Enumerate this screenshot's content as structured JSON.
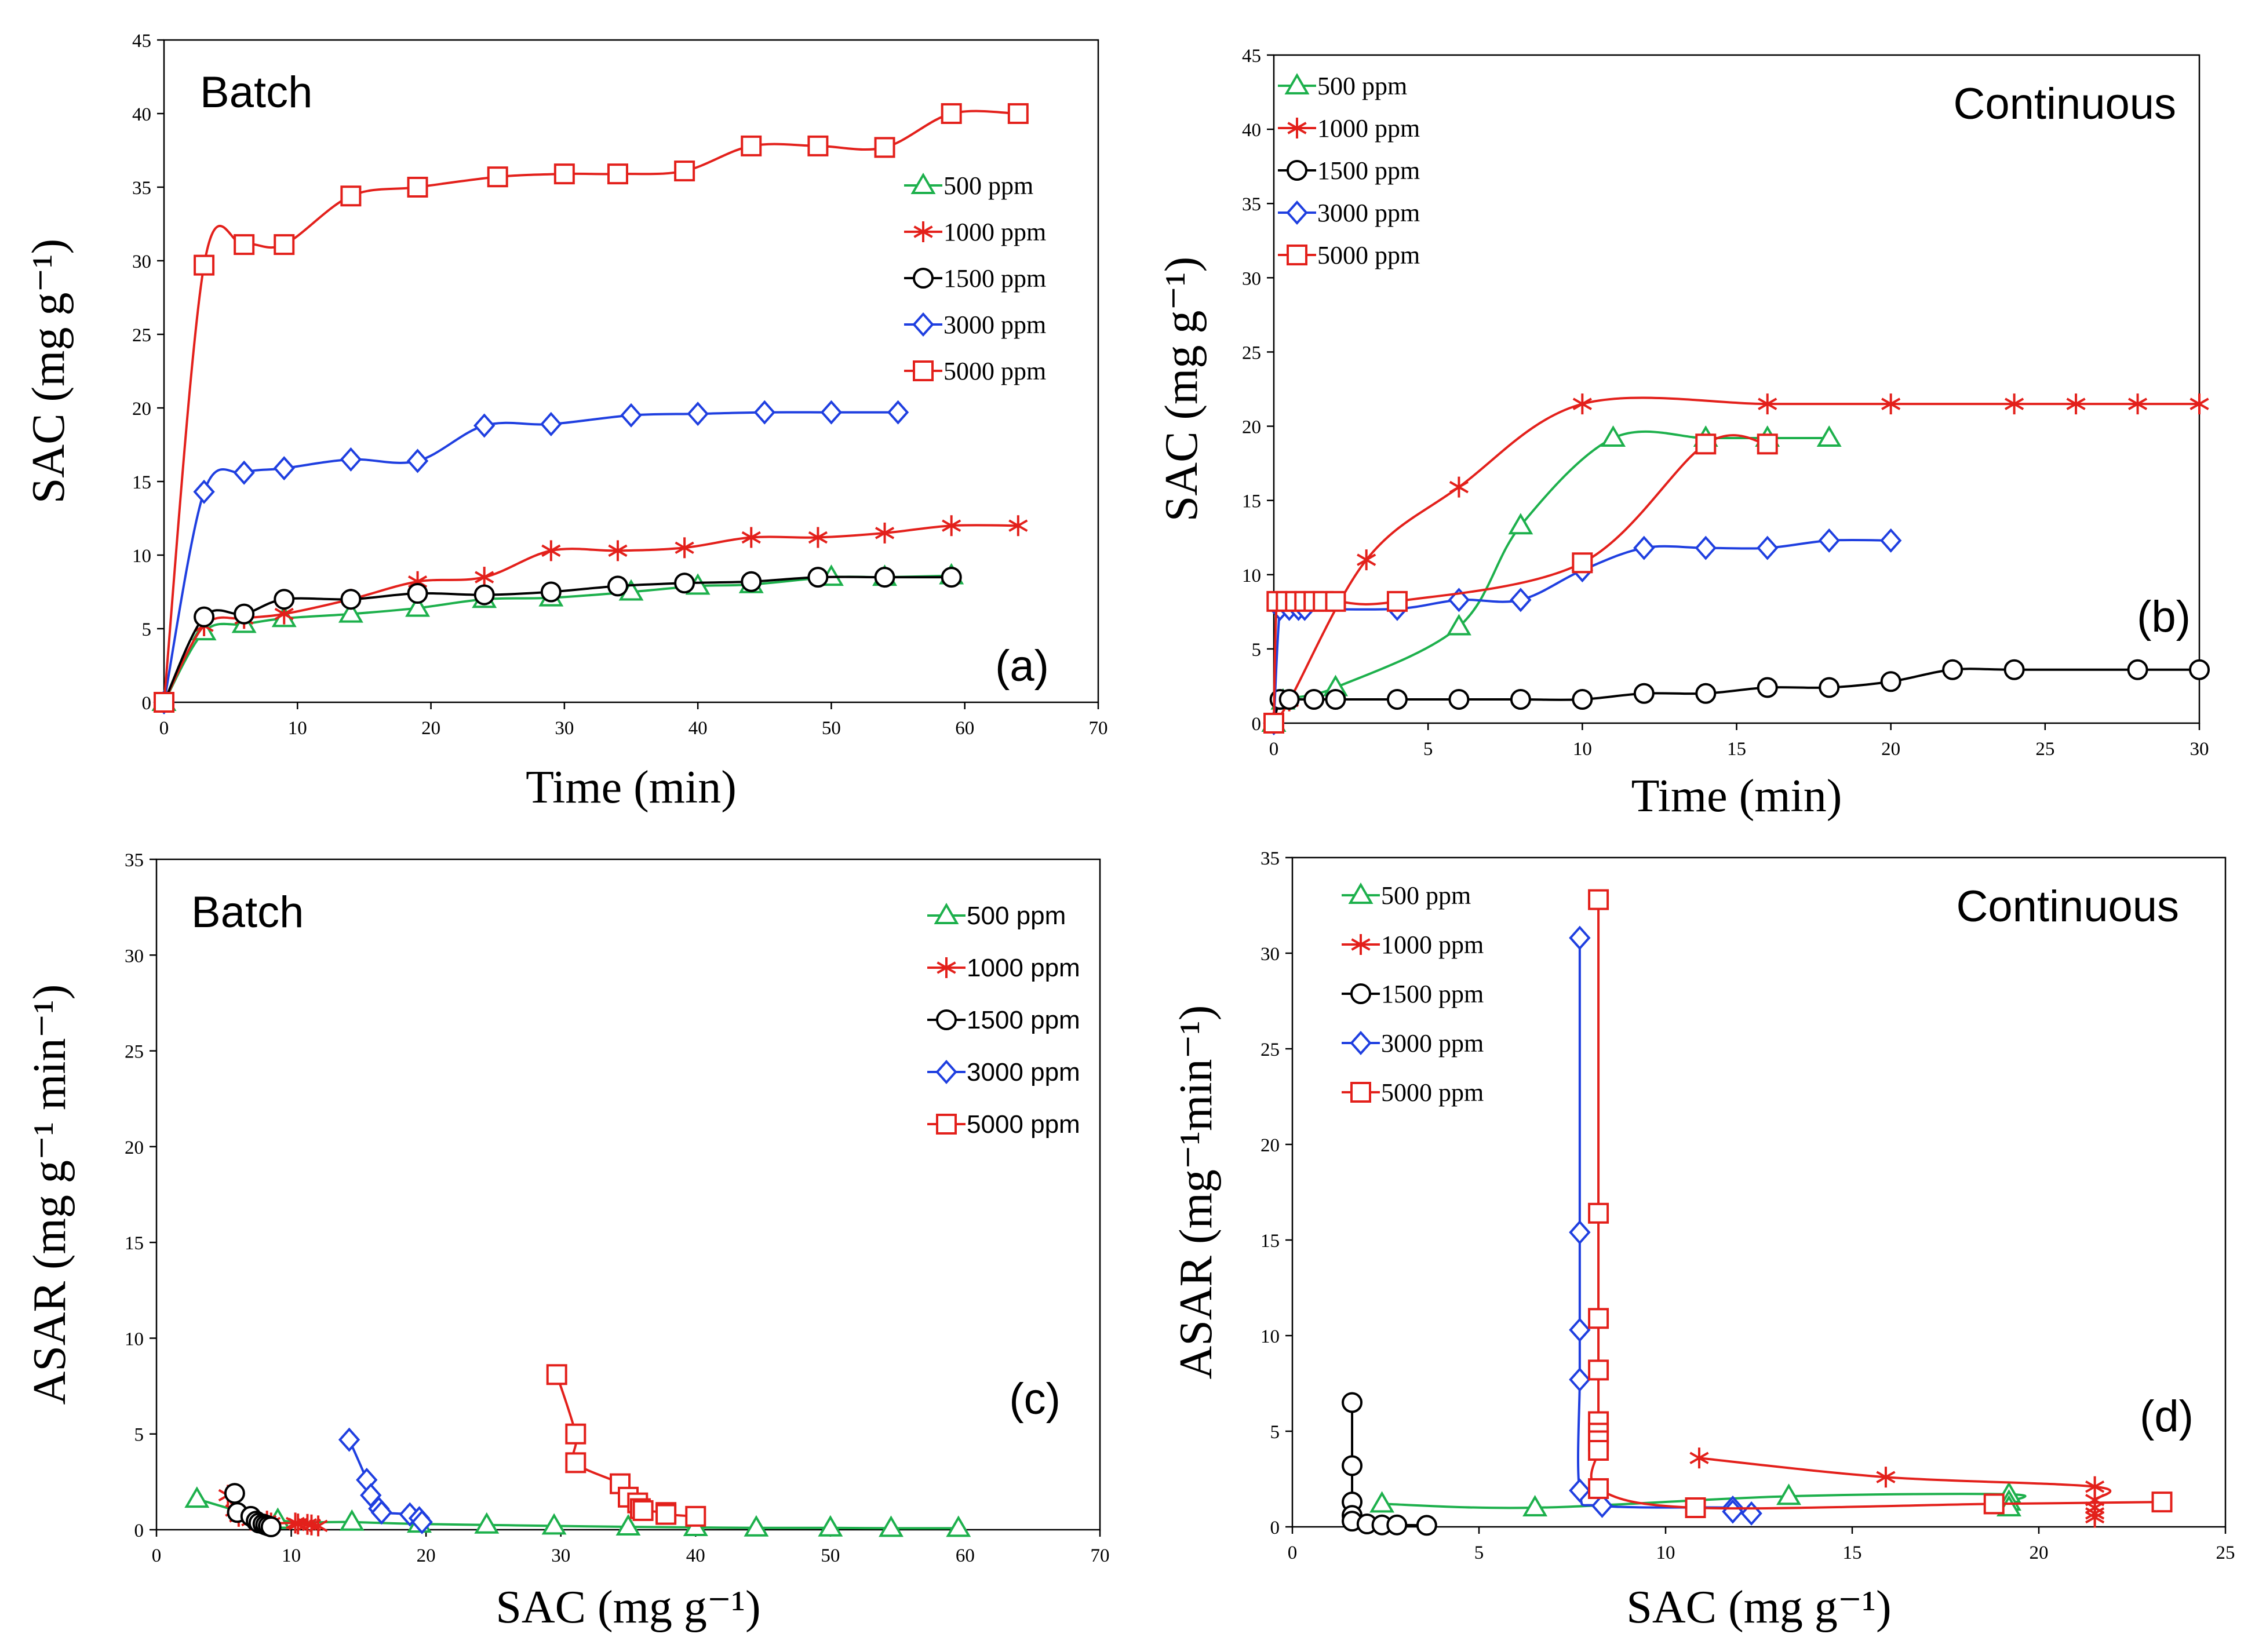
{
  "colors": {
    "500 ppm": "#1db04c",
    "1000 ppm": "#e3201b",
    "1500 ppm": "#000000",
    "3000 ppm": "#1f3fe0",
    "5000 ppm": "#e3201b"
  },
  "chart_data": [
    {
      "id": "a",
      "type": "line",
      "title": "Batch",
      "panel_label": "(a)",
      "xlabel": "Time (min)",
      "ylabel": "SAC (mg g⁻¹)",
      "xlim": [
        0,
        70
      ],
      "ylim": [
        0,
        45
      ],
      "xticks": [
        0,
        10,
        20,
        30,
        40,
        50,
        60,
        70
      ],
      "yticks": [
        0,
        5,
        10,
        15,
        20,
        25,
        30,
        35,
        40,
        45
      ],
      "series": [
        {
          "name": "500 ppm",
          "marker": "triangle",
          "x": [
            0,
            3,
            6,
            9,
            14,
            19,
            24,
            29,
            35,
            40,
            44,
            50,
            54,
            59
          ],
          "y": [
            0,
            4.8,
            5.3,
            5.7,
            6.0,
            6.4,
            7.0,
            7.1,
            7.5,
            7.9,
            8.0,
            8.5,
            8.5,
            8.6
          ]
        },
        {
          "name": "1000 ppm",
          "marker": "asterisk",
          "x": [
            0,
            3,
            6,
            9,
            14,
            19,
            24,
            29,
            34,
            39,
            44,
            49,
            54,
            59,
            64
          ],
          "y": [
            0,
            5.2,
            5.7,
            6.0,
            7.0,
            8.2,
            8.5,
            10.3,
            10.3,
            10.5,
            11.2,
            11.2,
            11.5,
            12.0,
            12.0
          ]
        },
        {
          "name": "1500 ppm",
          "marker": "circle",
          "x": [
            0,
            3,
            6,
            9,
            14,
            19,
            24,
            29,
            34,
            39,
            44,
            49,
            54,
            59
          ],
          "y": [
            0,
            5.8,
            6.0,
            7.0,
            7.0,
            7.4,
            7.3,
            7.5,
            7.9,
            8.1,
            8.2,
            8.5,
            8.5,
            8.5
          ]
        },
        {
          "name": "3000 ppm",
          "marker": "diamond",
          "x": [
            0,
            3,
            6,
            9,
            14,
            19,
            24,
            29,
            35,
            40,
            45,
            50,
            55
          ],
          "y": [
            0,
            14.3,
            15.6,
            15.9,
            16.5,
            16.4,
            18.8,
            18.9,
            19.5,
            19.6,
            19.7,
            19.7,
            19.7
          ]
        },
        {
          "name": "5000 ppm",
          "marker": "square",
          "x": [
            0,
            3,
            6,
            9,
            14,
            19,
            25,
            30,
            34,
            39,
            44,
            49,
            54,
            59,
            64
          ],
          "y": [
            0,
            29.7,
            31.1,
            31.1,
            34.4,
            35.0,
            35.7,
            35.9,
            35.9,
            36.1,
            37.8,
            37.8,
            37.7,
            40.0,
            40.0
          ]
        }
      ]
    },
    {
      "id": "b",
      "type": "line",
      "title": "Continuous",
      "panel_label": "(b)",
      "xlabel": "Time (min)",
      "ylabel": "SAC (mg g⁻¹)",
      "xlim": [
        0,
        30
      ],
      "ylim": [
        0,
        45
      ],
      "xticks": [
        0,
        5,
        10,
        15,
        20,
        25,
        30
      ],
      "yticks": [
        0,
        5,
        10,
        15,
        20,
        25,
        30,
        35,
        40,
        45
      ],
      "series": [
        {
          "name": "500 ppm",
          "marker": "triangle",
          "x": [
            0,
            0.3,
            2,
            6,
            8,
            11,
            14,
            16,
            18
          ],
          "y": [
            0,
            1.5,
            2.4,
            6.5,
            13.3,
            19.2,
            19.2,
            19.2,
            19.2
          ]
        },
        {
          "name": "1000 ppm",
          "marker": "asterisk",
          "x": [
            0,
            0.5,
            3,
            6,
            10,
            16,
            20,
            24,
            26,
            28,
            30
          ],
          "y": [
            0,
            1.5,
            11.0,
            15.9,
            21.5,
            21.5,
            21.5,
            21.5,
            21.5,
            21.5,
            21.5
          ]
        },
        {
          "name": "1500 ppm",
          "marker": "circle",
          "x": [
            0,
            0.2,
            0.5,
            1.3,
            2,
            4,
            6,
            8,
            10,
            12,
            14,
            16,
            18,
            20,
            22,
            24,
            28,
            30
          ],
          "y": [
            0,
            1.6,
            1.6,
            1.6,
            1.6,
            1.6,
            1.6,
            1.6,
            1.6,
            2.0,
            2.0,
            2.4,
            2.4,
            2.8,
            3.6,
            3.6,
            3.6,
            3.6
          ]
        },
        {
          "name": "3000 ppm",
          "marker": "diamond",
          "x": [
            0,
            0.2,
            0.5,
            0.8,
            1,
            4,
            6,
            8,
            10,
            12,
            14,
            16,
            18,
            20
          ],
          "y": [
            0,
            7.7,
            7.7,
            7.7,
            7.7,
            7.7,
            8.3,
            8.3,
            10.3,
            11.8,
            11.8,
            11.8,
            12.3,
            12.3
          ]
        },
        {
          "name": "5000 ppm",
          "marker": "square",
          "x": [
            0,
            0.1,
            0.4,
            0.7,
            1,
            1.3,
            1.6,
            2,
            4,
            10,
            14,
            16
          ],
          "y": [
            0,
            8.2,
            8.2,
            8.2,
            8.2,
            8.2,
            8.2,
            8.2,
            8.2,
            10.8,
            18.8,
            18.8
          ]
        }
      ]
    },
    {
      "id": "c",
      "type": "line",
      "title": "Batch",
      "panel_label": "(c)",
      "xlabel": "SAC (mg g⁻¹)",
      "ylabel": "ASAR (mg g⁻¹ min⁻¹)",
      "xlim": [
        0,
        70
      ],
      "ylim": [
        0,
        35
      ],
      "xticks": [
        0,
        10,
        20,
        30,
        40,
        50,
        60,
        70
      ],
      "yticks": [
        0,
        5,
        10,
        15,
        20,
        25,
        30,
        35
      ],
      "series": [
        {
          "name": "500 ppm",
          "marker": "triangle",
          "x": [
            3,
            9,
            14.5,
            19.5,
            24.5,
            29.5,
            35,
            40,
            44.5,
            50,
            54.5,
            59.5
          ],
          "y": [
            1.6,
            0.5,
            0.4,
            0.3,
            0.25,
            0.2,
            0.15,
            0.12,
            0.1,
            0.1,
            0.08,
            0.08
          ]
        },
        {
          "name": "1000 ppm",
          "marker": "asterisk",
          "x": [
            5.3,
            5.8,
            6.1,
            7.0,
            8.2,
            8.5,
            10.3,
            10.5,
            11.2,
            11.5,
            12.0
          ],
          "y": [
            1.8,
            1.0,
            0.7,
            0.5,
            0.45,
            0.35,
            0.35,
            0.3,
            0.28,
            0.25,
            0.2
          ]
        },
        {
          "name": "1500 ppm",
          "marker": "circle",
          "x": [
            5.8,
            6.0,
            7.0,
            7.4,
            7.6,
            7.9,
            8.1,
            8.3,
            8.5
          ],
          "y": [
            1.9,
            0.9,
            0.7,
            0.45,
            0.35,
            0.3,
            0.25,
            0.2,
            0.15
          ]
        },
        {
          "name": "3000 ppm",
          "marker": "diamond",
          "x": [
            14.3,
            15.6,
            15.9,
            16.5,
            16.7,
            18.8,
            19.5,
            19.7
          ],
          "y": [
            4.7,
            2.6,
            1.8,
            1.1,
            0.9,
            0.8,
            0.6,
            0.4
          ]
        },
        {
          "name": "5000 ppm",
          "marker": "square",
          "x": [
            29.7,
            31.1,
            31.1,
            34.4,
            35.0,
            35.7,
            35.9,
            36.1,
            37.8,
            37.8,
            40.0
          ],
          "y": [
            8.1,
            5.0,
            3.5,
            2.4,
            1.7,
            1.4,
            1.1,
            1.0,
            0.9,
            0.8,
            0.7
          ]
        }
      ]
    },
    {
      "id": "d",
      "type": "line",
      "title": "Continuous",
      "panel_label": "(d)",
      "xlabel": "SAC (mg g⁻¹)",
      "ylabel": "ASAR (mg⁻¹min⁻¹)",
      "xlim": [
        0,
        25
      ],
      "ylim": [
        0,
        35
      ],
      "xticks": [
        0,
        5,
        10,
        15,
        20,
        25
      ],
      "yticks": [
        0,
        5,
        10,
        15,
        20,
        25,
        30,
        35
      ],
      "series": [
        {
          "name": "500 ppm",
          "marker": "triangle",
          "x": [
            2.4,
            6.5,
            13.3,
            19.2,
            19.2,
            19.2
          ],
          "y": [
            1.2,
            1.0,
            1.6,
            1.7,
            1.3,
            1.0
          ]
        },
        {
          "name": "1000 ppm",
          "marker": "asterisk",
          "x": [
            10.9,
            15.9,
            21.5,
            21.5,
            21.5,
            21.5,
            21.5
          ],
          "y": [
            3.6,
            2.6,
            2.1,
            1.4,
            1.0,
            0.7,
            0.5
          ]
        },
        {
          "name": "1500 ppm",
          "marker": "circle",
          "x": [
            1.6,
            1.6,
            1.6,
            1.6,
            1.6,
            2.0,
            2.4,
            2.8,
            3.6
          ],
          "y": [
            6.5,
            3.2,
            1.3,
            0.6,
            0.3,
            0.15,
            0.1,
            0.1,
            0.08
          ]
        },
        {
          "name": "3000 ppm",
          "marker": "diamond",
          "x": [
            7.7,
            7.7,
            7.7,
            7.7,
            7.7,
            8.3,
            11.8,
            11.8,
            12.3
          ],
          "y": [
            30.8,
            15.4,
            10.3,
            7.7,
            1.9,
            1.1,
            1.0,
            0.8,
            0.7
          ]
        },
        {
          "name": "5000 ppm",
          "marker": "square",
          "x": [
            8.2,
            8.2,
            8.2,
            8.2,
            8.2,
            8.2,
            8.2,
            8.2,
            8.2,
            10.8,
            18.8,
            23.3
          ],
          "y": [
            32.8,
            16.4,
            10.9,
            8.2,
            5.5,
            4.9,
            4.5,
            4.0,
            2.0,
            1.0,
            1.2,
            1.3
          ]
        }
      ]
    }
  ]
}
